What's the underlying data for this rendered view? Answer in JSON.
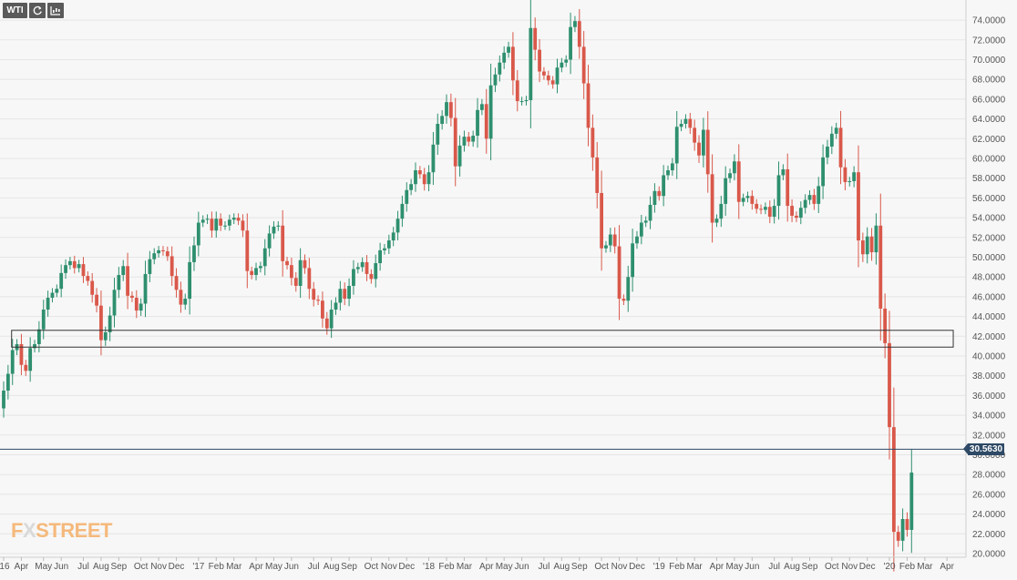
{
  "toolbar": {
    "symbol": "WTI",
    "refresh_icon": "refresh-icon",
    "chart_type_icon": "candlestick-chart-icon"
  },
  "logo": {
    "part1": "F",
    "part2": "X",
    "part3": "STREET"
  },
  "current_price": "30.5630",
  "colors": {
    "up": "#2e8f6e",
    "down": "#d9584a",
    "grid": "#e6e6e6",
    "axis_text": "#555555",
    "price_line": "#2e4a66",
    "box": "#333333"
  },
  "chart_data": {
    "type": "candlestick",
    "title": "",
    "xlabel": "",
    "ylabel": "",
    "ylim": [
      19.6,
      75.8
    ],
    "y_ticks": [
      "20.0000",
      "22.0000",
      "24.0000",
      "26.0000",
      "28.0000",
      "30.0000",
      "32.0000",
      "34.0000",
      "36.0000",
      "38.0000",
      "40.0000",
      "42.0000",
      "44.0000",
      "46.0000",
      "48.0000",
      "50.0000",
      "52.0000",
      "54.0000",
      "56.0000",
      "58.0000",
      "60.0000",
      "62.0000",
      "64.0000",
      "66.0000",
      "68.0000",
      "70.0000",
      "72.0000",
      "74.0000"
    ],
    "x_ticks": [
      {
        "label": "'16",
        "index": 0
      },
      {
        "label": "Apr",
        "index": 4
      },
      {
        "label": "May",
        "index": 9
      },
      {
        "label": "Jun",
        "index": 13
      },
      {
        "label": "Jul",
        "index": 18
      },
      {
        "label": "Aug",
        "index": 22
      },
      {
        "label": "Sep",
        "index": 26
      },
      {
        "label": "Oct",
        "index": 31
      },
      {
        "label": "Nov",
        "index": 35
      },
      {
        "label": "Dec",
        "index": 39
      },
      {
        "label": "'17",
        "index": 44
      },
      {
        "label": "Feb",
        "index": 48
      },
      {
        "label": "Mar",
        "index": 52
      },
      {
        "label": "Apr",
        "index": 57
      },
      {
        "label": "May",
        "index": 61
      },
      {
        "label": "Jun",
        "index": 65
      },
      {
        "label": "Jul",
        "index": 70
      },
      {
        "label": "Aug",
        "index": 74
      },
      {
        "label": "Sep",
        "index": 78
      },
      {
        "label": "Oct",
        "index": 83
      },
      {
        "label": "Nov",
        "index": 87
      },
      {
        "label": "Dec",
        "index": 91
      },
      {
        "label": "'18",
        "index": 96
      },
      {
        "label": "Feb",
        "index": 100
      },
      {
        "label": "Mar",
        "index": 104
      },
      {
        "label": "Apr",
        "index": 109
      },
      {
        "label": "May",
        "index": 113
      },
      {
        "label": "Jun",
        "index": 117
      },
      {
        "label": "Jul",
        "index": 122
      },
      {
        "label": "Aug",
        "index": 126
      },
      {
        "label": "Sep",
        "index": 130
      },
      {
        "label": "Oct",
        "index": 135
      },
      {
        "label": "Nov",
        "index": 139
      },
      {
        "label": "Dec",
        "index": 143
      },
      {
        "label": "'19",
        "index": 148
      },
      {
        "label": "Feb",
        "index": 152
      },
      {
        "label": "Mar",
        "index": 156
      },
      {
        "label": "Apr",
        "index": 161
      },
      {
        "label": "May",
        "index": 165
      },
      {
        "label": "Jun",
        "index": 169
      },
      {
        "label": "Jul",
        "index": 174
      },
      {
        "label": "Aug",
        "index": 178
      },
      {
        "label": "Sep",
        "index": 182
      },
      {
        "label": "Oct",
        "index": 187
      },
      {
        "label": "Nov",
        "index": 191
      },
      {
        "label": "Dec",
        "index": 195
      },
      {
        "label": "'20",
        "index": 200
      },
      {
        "label": "Feb",
        "index": 204
      },
      {
        "label": "Mar",
        "index": 208
      },
      {
        "label": "Apr",
        "index": 213
      }
    ],
    "closes": [
      36.5,
      38.2,
      40.6,
      41.2,
      39.1,
      38.5,
      40.8,
      41.2,
      42.7,
      44.7,
      45.9,
      46.4,
      46.8,
      48.4,
      49.2,
      49.6,
      48.9,
      49.3,
      48.1,
      47.6,
      46.2,
      45.1,
      41.6,
      42.4,
      44.1,
      46.7,
      48.2,
      49.1,
      46.1,
      45.9,
      44.6,
      45.3,
      48.3,
      49.8,
      50.4,
      50.7,
      50.6,
      50.1,
      48.1,
      46.7,
      45.2,
      45.8,
      49.5,
      51.2,
      53.5,
      53.8,
      53.9,
      52.7,
      53.9,
      53.2,
      53.2,
      53.8,
      54.0,
      53.7,
      52.7,
      48.6,
      48.2,
      48.9,
      49.1,
      50.9,
      52.4,
      53.1,
      53.2,
      49.6,
      49.2,
      47.9,
      47.1,
      49.7,
      48.9,
      46.8,
      45.7,
      45.6,
      43.8,
      42.8,
      44.7,
      45.4,
      46.8,
      45.8,
      47.1,
      48.8,
      49.0,
      49.5,
      48.3,
      47.8,
      49.4,
      50.7,
      50.9,
      51.7,
      52.5,
      53.9,
      55.4,
      56.8,
      57.4,
      58.8,
      58.4,
      57.4,
      58.6,
      61.4,
      63.5,
      64.3,
      65.7,
      64.1,
      59.2,
      61.3,
      62.2,
      61.7,
      62.3,
      64.9,
      65.5,
      62.0,
      67.4,
      68.5,
      69.7,
      70.7,
      71.3,
      67.9,
      65.8,
      65.8,
      65.9,
      73.2,
      71.0,
      68.8,
      68.4,
      67.9,
      67.5,
      69.2,
      69.7,
      70.0,
      73.3,
      73.9,
      71.3,
      67.6,
      63.1,
      60.1,
      56.5,
      50.9,
      51.2,
      52.3,
      51.1,
      45.8,
      45.6,
      48.0,
      51.4,
      52.1,
      53.5,
      53.7,
      55.3,
      56.7,
      56.2,
      58.3,
      58.8,
      59.5,
      63.2,
      63.5,
      64.0,
      63.1,
      61.6,
      60.3,
      62.9,
      58.4,
      53.5,
      53.9,
      55.4,
      58.0,
      58.5,
      59.7,
      55.6,
      56.0,
      56.2,
      55.4,
      54.9,
      54.8,
      55.1,
      54.1,
      55.2,
      58.3,
      58.9,
      55.2,
      54.2,
      54.0,
      55.0,
      55.8,
      56.3,
      55.4,
      57.2,
      60.1,
      61.2,
      62.5,
      63.1,
      59.1,
      57.6,
      57.7,
      58.6,
      51.7,
      50.3,
      52.1,
      50.5,
      53.2,
      44.8,
      41.3,
      32.8,
      22.2,
      21.3,
      23.5,
      22.4,
      28.2
    ],
    "open_first": 34.7,
    "annotation": {
      "type": "support-box",
      "y_range": [
        40.9,
        42.6
      ],
      "x_range_index": [
        2,
        214
      ]
    },
    "current_price_line": 30.563
  }
}
